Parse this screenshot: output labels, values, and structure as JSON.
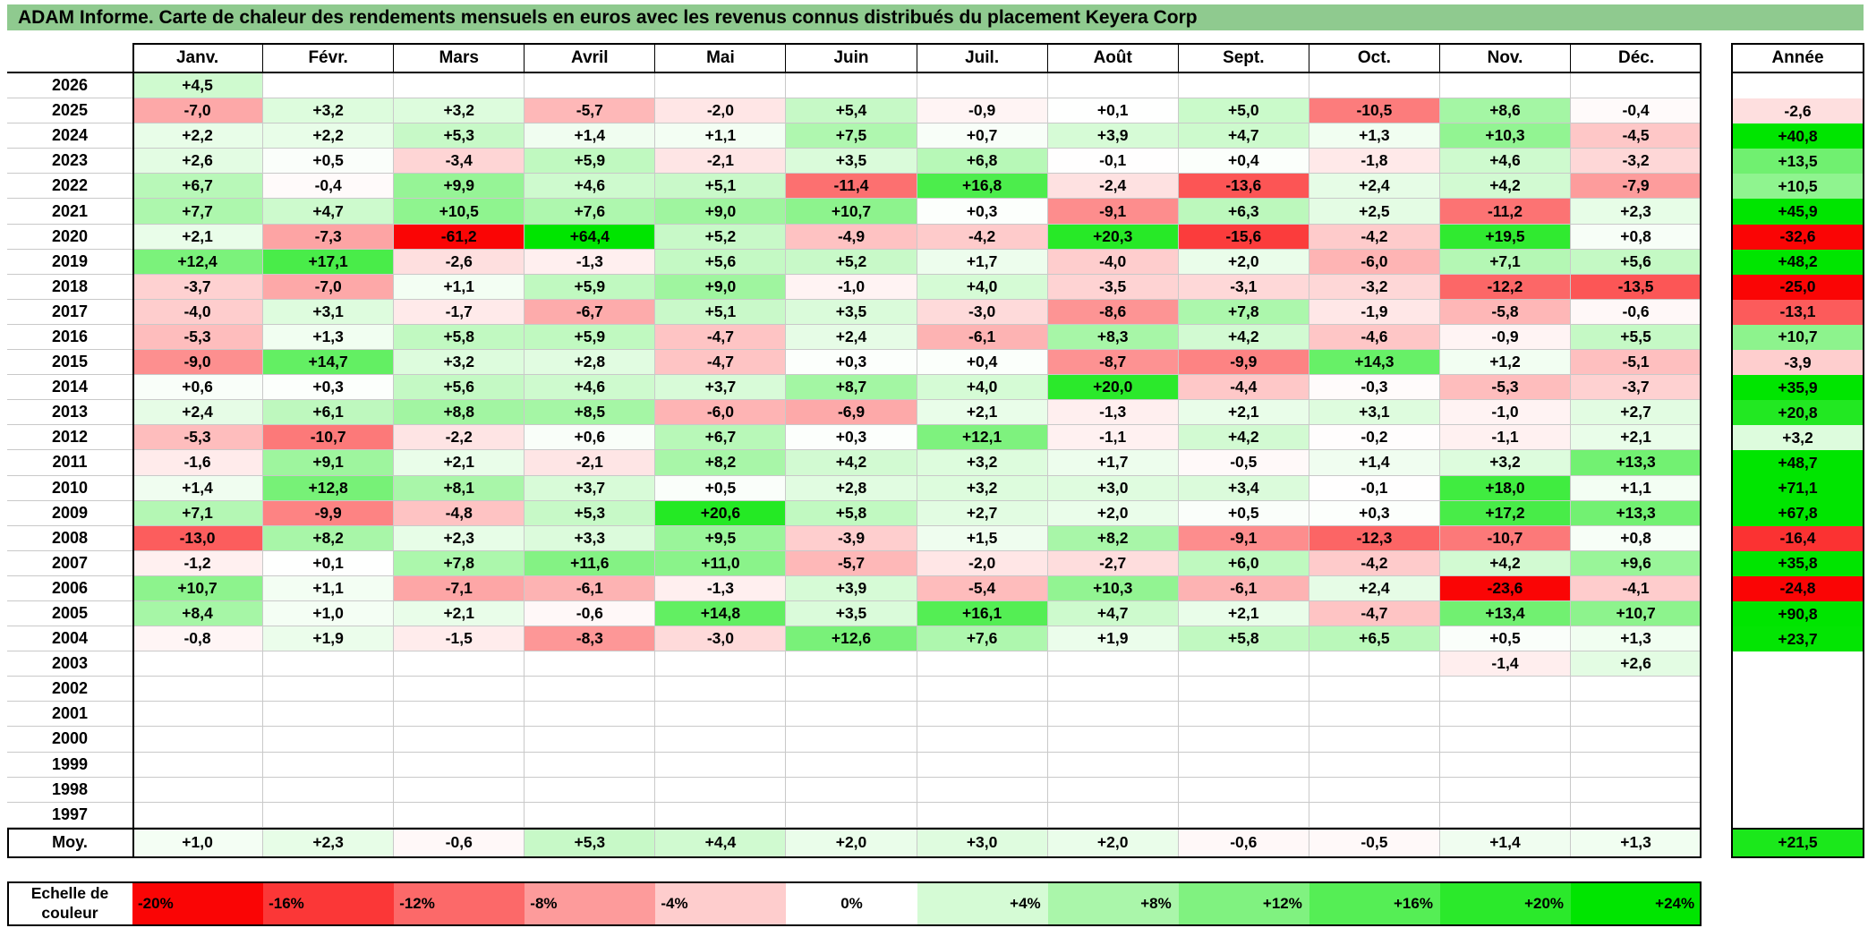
{
  "title": "ADAM Informe. Carte de chaleur des rendements mensuels en euros avec les revenus connus distribués du placement Keyera Corp",
  "colors": {
    "title_bar": "#8FCA8F",
    "max_green": "#00E500",
    "max_red": "#FA0505",
    "gridline": "#C9C9C9"
  },
  "table": {
    "annual_header": "Année",
    "avg_label": "Moy.",
    "scale_label": "Echelle de couleur"
  },
  "chart_data": {
    "type": "heatmap",
    "title": "ADAM Informe. Carte de chaleur des rendements mensuels en euros avec les revenus connus distribués du placement Keyera Corp",
    "unit": "percent, displayed with comma decimals",
    "columns": [
      "Janv.",
      "Févr.",
      "Mars",
      "Avril",
      "Mai",
      "Juin",
      "Juil.",
      "Août",
      "Sept.",
      "Oct.",
      "Nov.",
      "Déc."
    ],
    "annual_column": "Année",
    "rows": [
      {
        "year": "2026",
        "values": [
          4.5,
          null,
          null,
          null,
          null,
          null,
          null,
          null,
          null,
          null,
          null,
          null
        ],
        "annual": null
      },
      {
        "year": "2025",
        "values": [
          -7.0,
          3.2,
          3.2,
          -5.7,
          -2.0,
          5.4,
          -0.9,
          0.1,
          5.0,
          -10.5,
          8.6,
          -0.4
        ],
        "annual": -2.6
      },
      {
        "year": "2024",
        "values": [
          2.2,
          2.2,
          5.3,
          1.4,
          1.1,
          7.5,
          0.7,
          3.9,
          4.7,
          1.3,
          10.3,
          -4.5
        ],
        "annual": 40.8
      },
      {
        "year": "2023",
        "values": [
          2.6,
          0.5,
          -3.4,
          5.9,
          -2.1,
          3.5,
          6.8,
          -0.1,
          0.4,
          -1.8,
          4.6,
          -3.2
        ],
        "annual": 13.5
      },
      {
        "year": "2022",
        "values": [
          6.7,
          -0.4,
          9.9,
          4.6,
          5.1,
          -11.4,
          16.8,
          -2.4,
          -13.6,
          2.4,
          4.2,
          -7.9
        ],
        "annual": 10.5
      },
      {
        "year": "2021",
        "values": [
          7.7,
          4.7,
          10.5,
          7.6,
          9.0,
          10.7,
          0.3,
          -9.1,
          6.3,
          2.5,
          -11.2,
          2.3
        ],
        "annual": 45.9
      },
      {
        "year": "2020",
        "values": [
          2.1,
          -7.3,
          -61.2,
          64.4,
          5.2,
          -4.9,
          -4.2,
          20.3,
          -15.6,
          -4.2,
          19.5,
          0.8
        ],
        "annual": -32.6
      },
      {
        "year": "2019",
        "values": [
          12.4,
          17.1,
          -2.6,
          -1.3,
          5.6,
          5.2,
          1.7,
          -4.0,
          2.0,
          -6.0,
          7.1,
          5.6
        ],
        "annual": 48.2
      },
      {
        "year": "2018",
        "values": [
          -3.7,
          -7.0,
          1.1,
          5.9,
          9.0,
          -1.0,
          4.0,
          -3.5,
          -3.1,
          -3.2,
          -12.2,
          -13.5
        ],
        "annual": -25.0
      },
      {
        "year": "2017",
        "values": [
          -4.0,
          3.1,
          -1.7,
          -6.7,
          5.1,
          3.5,
          -3.0,
          -8.6,
          7.8,
          -1.9,
          -5.8,
          -0.6
        ],
        "annual": -13.1
      },
      {
        "year": "2016",
        "values": [
          -5.3,
          1.3,
          5.8,
          5.9,
          -4.7,
          2.4,
          -6.1,
          8.3,
          4.2,
          -4.6,
          -0.9,
          5.5
        ],
        "annual": 10.7
      },
      {
        "year": "2015",
        "values": [
          -9.0,
          14.7,
          3.2,
          2.8,
          -4.7,
          0.3,
          0.4,
          -8.7,
          -9.9,
          14.3,
          1.2,
          -5.1
        ],
        "annual": -3.9
      },
      {
        "year": "2014",
        "values": [
          0.6,
          0.3,
          5.6,
          4.6,
          3.7,
          8.7,
          4.0,
          20.0,
          -4.4,
          -0.3,
          -5.3,
          -3.7
        ],
        "annual": 35.9
      },
      {
        "year": "2013",
        "values": [
          2.4,
          6.1,
          8.8,
          8.5,
          -6.0,
          -6.9,
          2.1,
          -1.3,
          2.1,
          3.1,
          -1.0,
          2.7
        ],
        "annual": 20.8
      },
      {
        "year": "2012",
        "values": [
          -5.3,
          -10.7,
          -2.2,
          0.6,
          6.7,
          0.3,
          12.1,
          -1.1,
          4.2,
          -0.2,
          -1.1,
          2.1
        ],
        "annual": 3.2
      },
      {
        "year": "2011",
        "values": [
          -1.6,
          9.1,
          2.1,
          -2.1,
          8.2,
          4.2,
          3.2,
          1.7,
          -0.5,
          1.4,
          3.2,
          13.3
        ],
        "annual": 48.7
      },
      {
        "year": "2010",
        "values": [
          1.4,
          12.8,
          8.1,
          3.7,
          0.5,
          2.8,
          3.2,
          3.0,
          3.4,
          -0.1,
          18.0,
          1.1
        ],
        "annual": 71.1
      },
      {
        "year": "2009",
        "values": [
          7.1,
          -9.9,
          -4.8,
          5.3,
          20.6,
          5.8,
          2.7,
          2.0,
          0.5,
          0.3,
          17.2,
          13.3
        ],
        "annual": 67.8
      },
      {
        "year": "2008",
        "values": [
          -13.0,
          8.2,
          2.3,
          3.3,
          9.5,
          -3.9,
          1.5,
          8.2,
          -9.1,
          -12.3,
          -10.7,
          0.8
        ],
        "annual": -16.4
      },
      {
        "year": "2007",
        "values": [
          -1.2,
          0.1,
          7.8,
          11.6,
          11.0,
          -5.7,
          -2.0,
          -2.7,
          6.0,
          -4.2,
          4.2,
          9.6
        ],
        "annual": 35.8
      },
      {
        "year": "2006",
        "values": [
          10.7,
          1.1,
          -7.1,
          -6.1,
          -1.3,
          3.9,
          -5.4,
          10.3,
          -6.1,
          2.4,
          -23.6,
          -4.1
        ],
        "annual": -24.8
      },
      {
        "year": "2005",
        "values": [
          8.4,
          1.0,
          2.1,
          -0.6,
          14.8,
          3.5,
          16.1,
          4.7,
          2.1,
          -4.7,
          13.4,
          10.7
        ],
        "annual": 90.8
      },
      {
        "year": "2004",
        "values": [
          -0.8,
          1.9,
          -1.5,
          -8.3,
          -3.0,
          12.6,
          7.6,
          1.9,
          5.8,
          6.5,
          0.5,
          1.3
        ],
        "annual": 23.7
      },
      {
        "year": "2003",
        "values": [
          null,
          null,
          null,
          null,
          null,
          null,
          null,
          null,
          null,
          null,
          -1.4,
          2.6
        ],
        "annual": null
      },
      {
        "year": "2002",
        "values": [
          null,
          null,
          null,
          null,
          null,
          null,
          null,
          null,
          null,
          null,
          null,
          null
        ],
        "annual": null
      },
      {
        "year": "2001",
        "values": [
          null,
          null,
          null,
          null,
          null,
          null,
          null,
          null,
          null,
          null,
          null,
          null
        ],
        "annual": null
      },
      {
        "year": "2000",
        "values": [
          null,
          null,
          null,
          null,
          null,
          null,
          null,
          null,
          null,
          null,
          null,
          null
        ],
        "annual": null
      },
      {
        "year": "1999",
        "values": [
          null,
          null,
          null,
          null,
          null,
          null,
          null,
          null,
          null,
          null,
          null,
          null
        ],
        "annual": null
      },
      {
        "year": "1998",
        "values": [
          null,
          null,
          null,
          null,
          null,
          null,
          null,
          null,
          null,
          null,
          null,
          null
        ],
        "annual": null
      },
      {
        "year": "1997",
        "values": [
          null,
          null,
          null,
          null,
          null,
          null,
          null,
          null,
          null,
          null,
          null,
          null
        ],
        "annual": null
      }
    ],
    "avg_row": {
      "label": "Moy.",
      "values": [
        1.0,
        2.3,
        -0.6,
        5.3,
        4.4,
        2.0,
        3.0,
        2.0,
        -0.6,
        -0.5,
        1.4,
        1.3
      ],
      "annual": 21.5
    },
    "color_scale": {
      "label": "Echelle de couleur",
      "ticks": [
        -20,
        -16,
        -12,
        -8,
        -4,
        0,
        4,
        8,
        12,
        16,
        20,
        24
      ],
      "negative_limit": -20,
      "positive_limit": 24
    }
  }
}
